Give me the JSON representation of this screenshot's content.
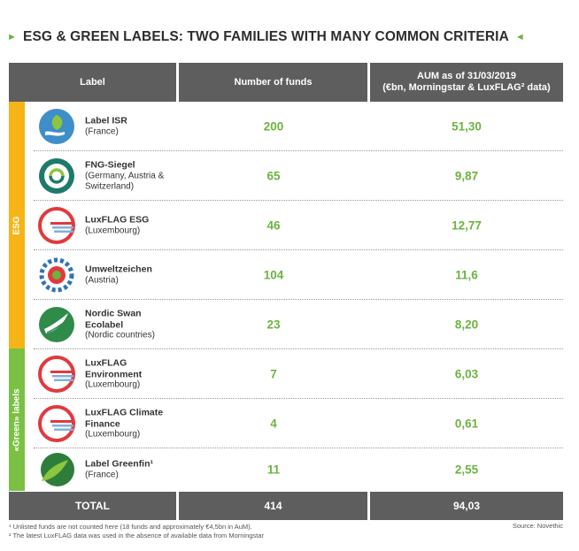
{
  "title": "ESG & GREEN LABELS: TWO FAMILIES WITH MANY COMMON CRITERIA",
  "header": {
    "label": "Label",
    "funds": "Number of funds",
    "aum_line1": "AUM as of 31/03/2019",
    "aum_line2": "(€bn, Morningstar & LuxFLAG² data)"
  },
  "groups": {
    "esg": "ESG",
    "green": "«Green» labels"
  },
  "rows": [
    {
      "name": "Label ISR",
      "country": "(France)",
      "funds": "200",
      "aum": "51,30",
      "icon": "label-isr-icon"
    },
    {
      "name": "FNG-Siegel",
      "country": "(Germany, Austria & Switzerland)",
      "funds": "65",
      "aum": "9,87",
      "icon": "fng-siegel-icon"
    },
    {
      "name": "LuxFLAG ESG",
      "country": "(Luxembourg)",
      "funds": "46",
      "aum": "12,77",
      "icon": "luxflag-icon"
    },
    {
      "name": "Umweltzeichen",
      "country": "(Austria)",
      "funds": "104",
      "aum": "11,6",
      "icon": "umweltzeichen-icon"
    },
    {
      "name": "Nordic Swan Ecolabel",
      "country": "(Nordic countries)",
      "funds": "23",
      "aum": "8,20",
      "icon": "nordic-swan-icon"
    },
    {
      "name": "LuxFLAG Environment",
      "country": "(Luxembourg)",
      "funds": "7",
      "aum": "6,03",
      "icon": "luxflag-icon"
    },
    {
      "name": "LuxFLAG Climate Finance",
      "country": "(Luxembourg)",
      "funds": "4",
      "aum": "0,61",
      "icon": "luxflag-icon"
    },
    {
      "name": "Label Greenfin¹",
      "country": "(France)",
      "funds": "11",
      "aum": "2,55",
      "icon": "greenfin-icon"
    }
  ],
  "total": {
    "label": "TOTAL",
    "funds": "414",
    "aum": "94,03"
  },
  "footnotes": [
    "¹ Unlisted funds are not counted here (18 funds and approximately €4,5bn in AuM).",
    "² The latest LuxFLAG data was used in the absence of available data from Morningstar"
  ],
  "source": "Source: Novethic",
  "colors": {
    "header": "#5e5e5e",
    "esg_band": "#f7b417",
    "green_band": "#7ac143",
    "value": "#6cb33f"
  }
}
